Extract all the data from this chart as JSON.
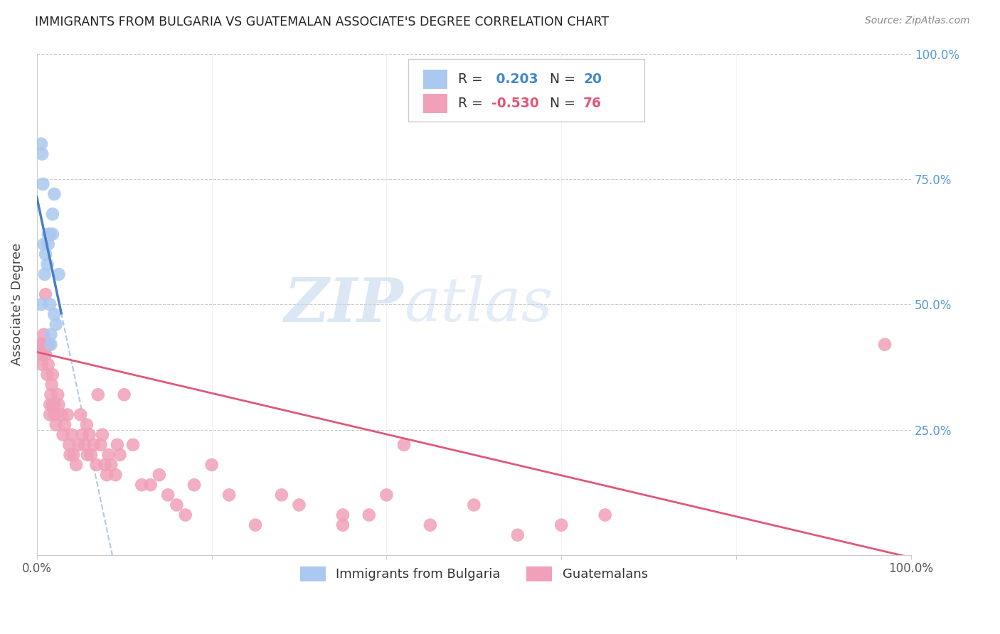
{
  "title": "IMMIGRANTS FROM BULGARIA VS GUATEMALAN ASSOCIATE'S DEGREE CORRELATION CHART",
  "source": "Source: ZipAtlas.com",
  "ylabel": "Associate's Degree",
  "legend_label_blue": "Immigrants from Bulgaria",
  "legend_label_pink": "Guatemalans",
  "blue_color": "#aac8f0",
  "blue_line_color": "#4a7fc1",
  "blue_dash_color": "#b0c8e8",
  "pink_color": "#f0a0b8",
  "pink_line_color": "#e05878",
  "watermark_zip": "ZIP",
  "watermark_atlas": "atlas",
  "blue_r": " 0.203",
  "blue_n": "20",
  "pink_r": "-0.530",
  "pink_n": "76",
  "blue_scatter_x": [
    0.005,
    0.005,
    0.008,
    0.009,
    0.01,
    0.012,
    0.013,
    0.013,
    0.015,
    0.015,
    0.016,
    0.016,
    0.018,
    0.018,
    0.02,
    0.02,
    0.022,
    0.025,
    0.006,
    0.007
  ],
  "blue_scatter_y": [
    0.5,
    0.82,
    0.62,
    0.56,
    0.6,
    0.58,
    0.62,
    0.64,
    0.64,
    0.5,
    0.42,
    0.44,
    0.64,
    0.68,
    0.72,
    0.48,
    0.46,
    0.56,
    0.8,
    0.74
  ],
  "pink_scatter_x": [
    0.003,
    0.005,
    0.006,
    0.007,
    0.008,
    0.009,
    0.01,
    0.01,
    0.012,
    0.013,
    0.014,
    0.015,
    0.015,
    0.016,
    0.017,
    0.018,
    0.018,
    0.02,
    0.02,
    0.022,
    0.024,
    0.025,
    0.028,
    0.03,
    0.032,
    0.035,
    0.037,
    0.038,
    0.04,
    0.042,
    0.045,
    0.048,
    0.05,
    0.052,
    0.055,
    0.057,
    0.058,
    0.06,
    0.062,
    0.065,
    0.068,
    0.07,
    0.073,
    0.075,
    0.078,
    0.08,
    0.082,
    0.085,
    0.09,
    0.092,
    0.095,
    0.1,
    0.11,
    0.12,
    0.13,
    0.14,
    0.15,
    0.16,
    0.17,
    0.18,
    0.2,
    0.22,
    0.25,
    0.28,
    0.3,
    0.35,
    0.38,
    0.4,
    0.45,
    0.5,
    0.55,
    0.6,
    0.65,
    0.97,
    0.35,
    0.42
  ],
  "pink_scatter_y": [
    0.42,
    0.4,
    0.38,
    0.42,
    0.44,
    0.4,
    0.4,
    0.52,
    0.36,
    0.38,
    0.42,
    0.3,
    0.28,
    0.32,
    0.34,
    0.36,
    0.3,
    0.3,
    0.28,
    0.26,
    0.32,
    0.3,
    0.28,
    0.24,
    0.26,
    0.28,
    0.22,
    0.2,
    0.24,
    0.2,
    0.18,
    0.22,
    0.28,
    0.24,
    0.22,
    0.26,
    0.2,
    0.24,
    0.2,
    0.22,
    0.18,
    0.32,
    0.22,
    0.24,
    0.18,
    0.16,
    0.2,
    0.18,
    0.16,
    0.22,
    0.2,
    0.32,
    0.22,
    0.14,
    0.14,
    0.16,
    0.12,
    0.1,
    0.08,
    0.14,
    0.18,
    0.12,
    0.06,
    0.12,
    0.1,
    0.06,
    0.08,
    0.12,
    0.06,
    0.1,
    0.04,
    0.06,
    0.08,
    0.42,
    0.08,
    0.22
  ],
  "xlim": [
    0.0,
    1.0
  ],
  "ylim": [
    0.0,
    1.0
  ],
  "blue_line_x_end": 0.028,
  "pink_intercept": 0.405,
  "pink_slope": -0.41
}
